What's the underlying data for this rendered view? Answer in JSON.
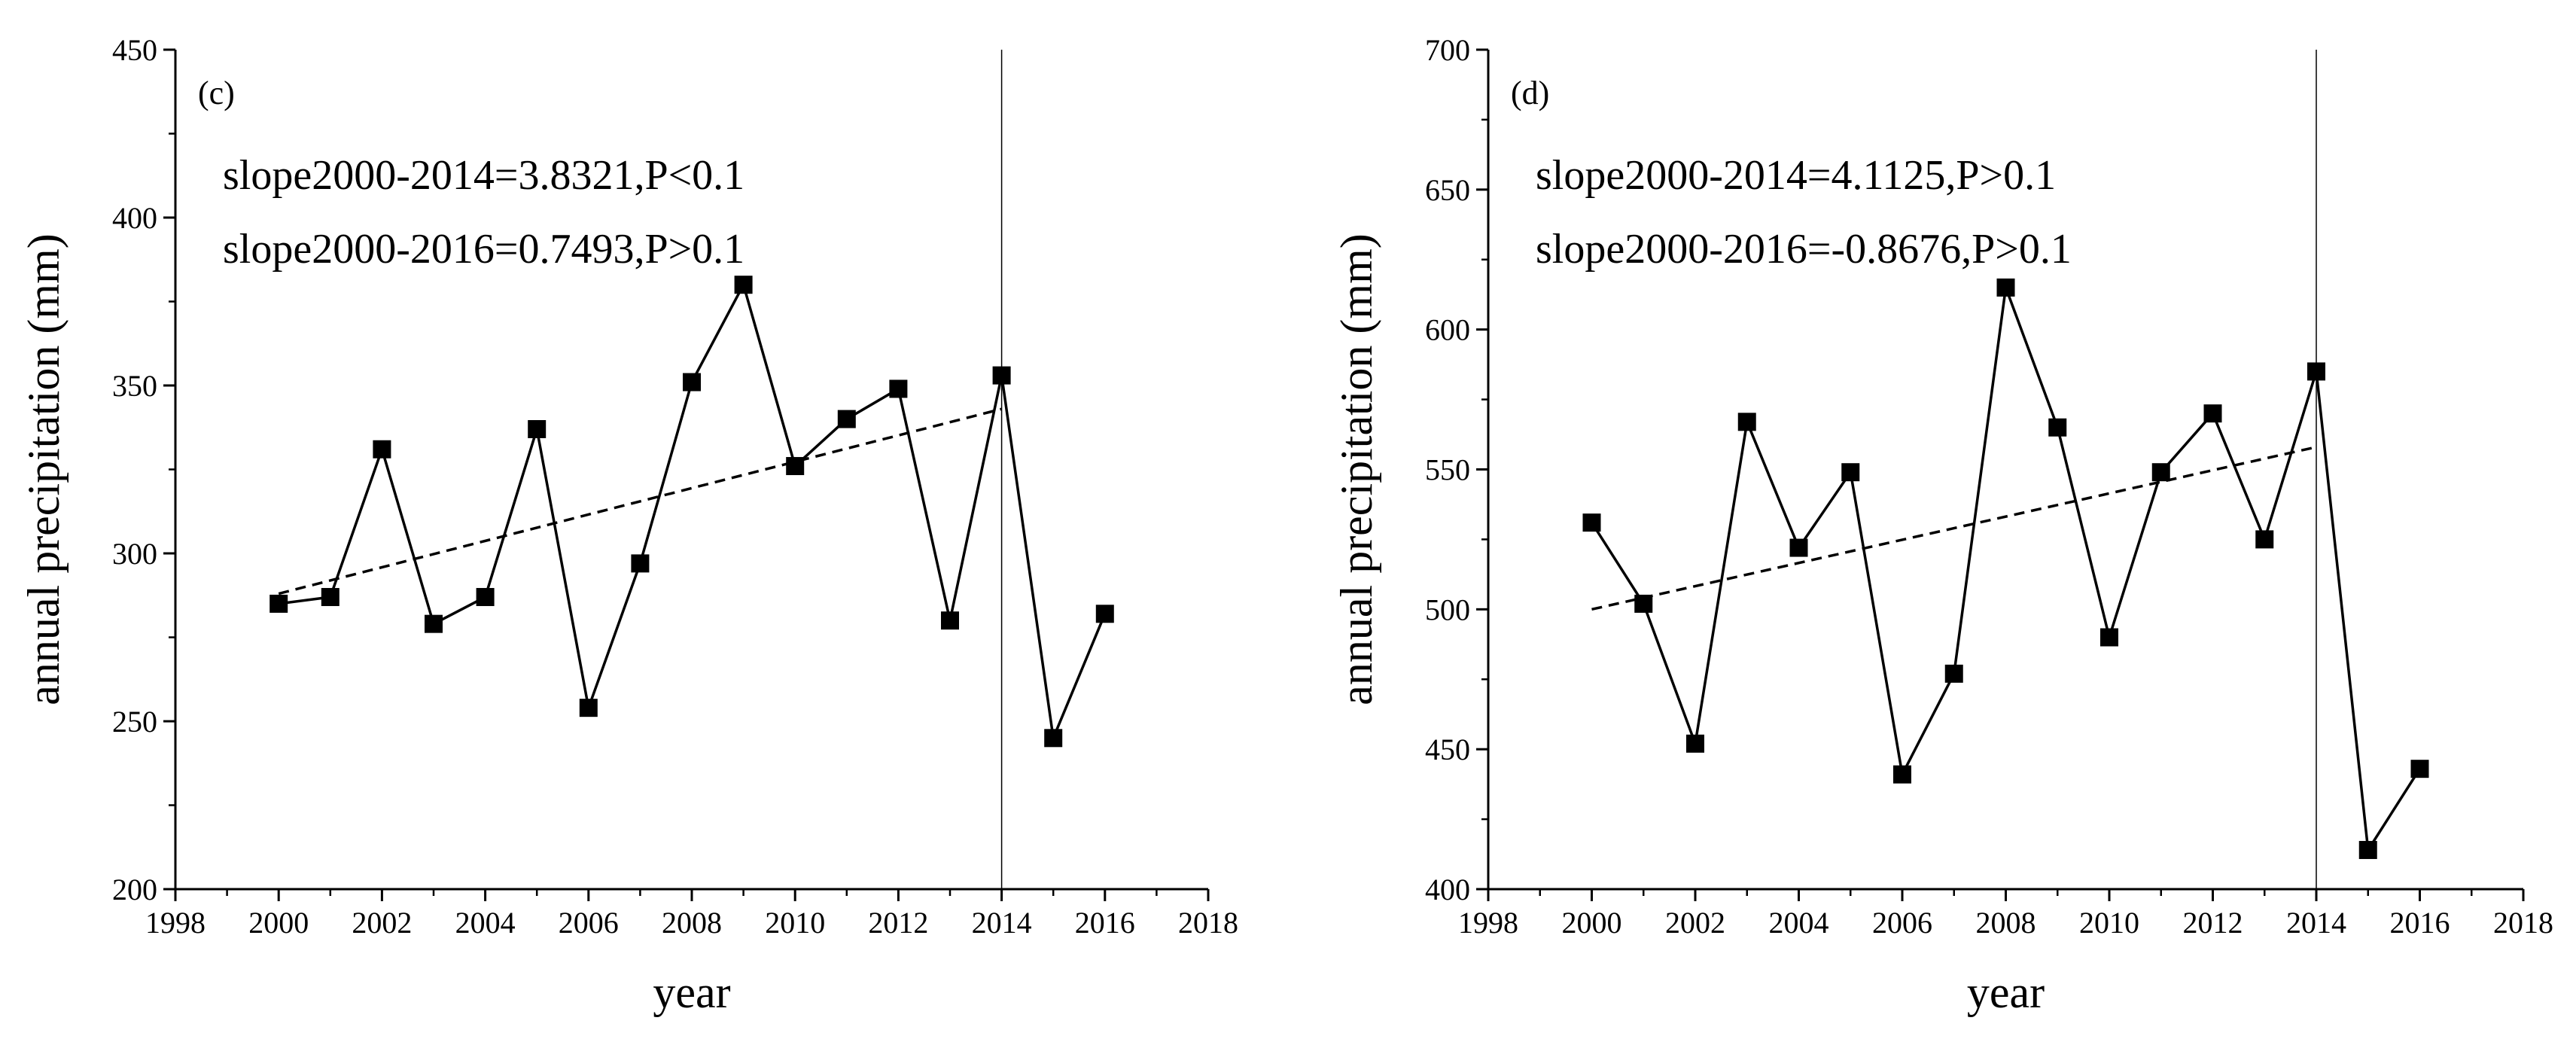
{
  "chart_data": [
    {
      "type": "line",
      "panel_label": "(c)",
      "xlabel": "year",
      "ylabel": "annual precipitation (mm)",
      "xlim": [
        1998,
        2018
      ],
      "ylim": [
        200,
        450
      ],
      "x_ticks": [
        1998,
        2000,
        2002,
        2004,
        2006,
        2008,
        2010,
        2012,
        2014,
        2016,
        2018
      ],
      "y_ticks": [
        200,
        250,
        300,
        350,
        400,
        450
      ],
      "x_tick_labels": [
        "1998",
        "2000",
        "2002",
        "2004",
        "2006",
        "2008",
        "2010",
        "2012",
        "2014",
        "2016",
        "2018"
      ],
      "y_tick_labels": [
        "200",
        "250",
        "300",
        "350",
        "400",
        "450"
      ],
      "series": [
        {
          "name": "annual precipitation",
          "x": [
            2000,
            2001,
            2002,
            2003,
            2004,
            2005,
            2006,
            2007,
            2008,
            2009,
            2010,
            2011,
            2012,
            2013,
            2014,
            2015,
            2016
          ],
          "values": [
            285,
            287,
            331,
            279,
            287,
            337,
            254,
            297,
            351,
            380,
            326,
            340,
            349,
            280,
            353,
            245,
            282
          ]
        }
      ],
      "trend_line": {
        "x": [
          2000,
          2014
        ],
        "y": [
          288,
          343
        ]
      },
      "vertical_marker": 2014,
      "annotations": [
        "slope2000-2014=3.8321,P<0.1",
        "slope2000-2016=0.7493,P>0.1"
      ]
    },
    {
      "type": "line",
      "panel_label": "(d)",
      "xlabel": "year",
      "ylabel": "annual precipitation (mm)",
      "xlim": [
        1998,
        2018
      ],
      "ylim": [
        400,
        700
      ],
      "x_ticks": [
        1998,
        2000,
        2002,
        2004,
        2006,
        2008,
        2010,
        2012,
        2014,
        2016,
        2018
      ],
      "y_ticks": [
        400,
        450,
        500,
        550,
        600,
        650,
        700
      ],
      "x_tick_labels": [
        "1998",
        "2000",
        "2002",
        "2004",
        "2006",
        "2008",
        "2010",
        "2012",
        "2014",
        "2016",
        "2018"
      ],
      "y_tick_labels": [
        "400",
        "450",
        "500",
        "550",
        "600",
        "650",
        "700"
      ],
      "series": [
        {
          "name": "annual precipitation",
          "x": [
            2000,
            2001,
            2002,
            2003,
            2004,
            2005,
            2006,
            2007,
            2008,
            2009,
            2010,
            2011,
            2012,
            2013,
            2014,
            2015,
            2016
          ],
          "values": [
            531,
            502,
            452,
            567,
            522,
            549,
            441,
            477,
            615,
            565,
            490,
            549,
            570,
            525,
            585,
            414,
            443
          ]
        }
      ],
      "trend_line": {
        "x": [
          2000,
          2014
        ],
        "y": [
          500,
          558
        ]
      },
      "vertical_marker": 2014,
      "annotations": [
        "slope2000-2014=4.1125,P>0.1",
        "slope2000-2016=-0.8676,P>0.1"
      ]
    }
  ]
}
